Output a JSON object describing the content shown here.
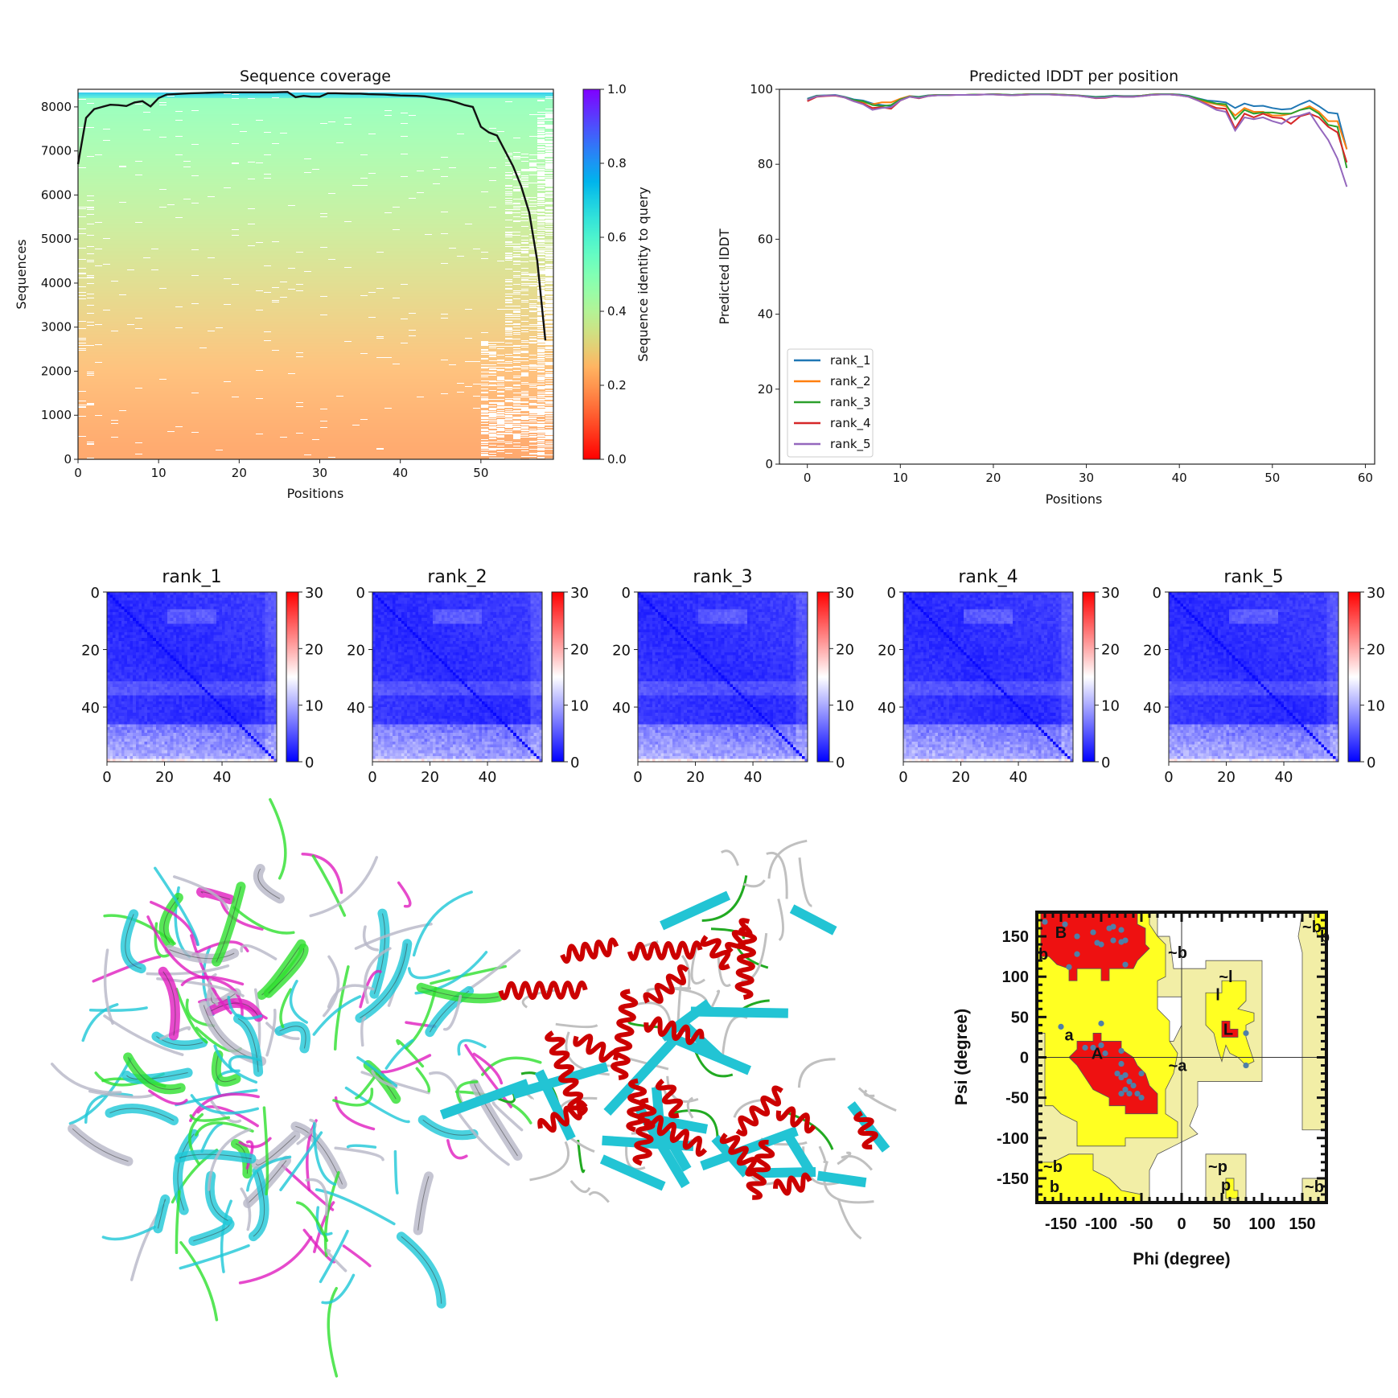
{
  "chart_data": [
    {
      "type": "heatmap",
      "id": "coverage",
      "title": "Sequence coverage",
      "xlabel": "Positions",
      "ylabel": "Sequences",
      "xlim": [
        0,
        59
      ],
      "ylim": [
        0,
        8400
      ],
      "xticks": [
        0,
        10,
        20,
        30,
        40,
        50
      ],
      "yticks": [
        0,
        1000,
        2000,
        3000,
        4000,
        5000,
        6000,
        7000,
        8000
      ],
      "colorbar": {
        "label": "Sequence identity to query",
        "range": [
          0,
          1
        ],
        "ticks": [
          "0.0",
          "0.2",
          "0.4",
          "0.6",
          "0.8",
          "1.0"
        ],
        "colormap": "rainbow_r"
      },
      "coverage_line": [
        6700,
        7750,
        7950,
        8000,
        8050,
        8040,
        8020,
        8100,
        8130,
        8010,
        8200,
        8280,
        8290,
        8300,
        8310,
        8315,
        8320,
        8325,
        8330,
        8330,
        8330,
        8330,
        8330,
        8330,
        8330,
        8335,
        8340,
        8220,
        8250,
        8230,
        8230,
        8310,
        8310,
        8305,
        8300,
        8300,
        8290,
        8285,
        8280,
        8270,
        8260,
        8255,
        8250,
        8240,
        8210,
        8180,
        8150,
        8100,
        8040,
        8000,
        7550,
        7420,
        7350,
        7000,
        6650,
        6200,
        5600,
        4500,
        2700
      ],
      "line_color": "#111111"
    },
    {
      "type": "line",
      "id": "plddt",
      "title": "Predicted lDDT per position",
      "xlabel": "Positions",
      "ylabel": "Predicted lDDT",
      "xlim": [
        -3,
        61
      ],
      "ylim": [
        0,
        100
      ],
      "xticks": [
        0,
        10,
        20,
        30,
        40,
        50,
        60
      ],
      "yticks": [
        0,
        20,
        40,
        60,
        80,
        100
      ],
      "legend_position": "lower-left",
      "series": [
        {
          "name": "rank_1",
          "color": "#1f77b4",
          "values": [
            97.5,
            98.3,
            98.4,
            98.5,
            98.0,
            97.3,
            97.0,
            96.2,
            95.8,
            95.5,
            97.2,
            98.2,
            98.0,
            98.4,
            98.5,
            98.5,
            98.5,
            98.5,
            98.6,
            98.6,
            98.7,
            98.6,
            98.5,
            98.6,
            98.7,
            98.7,
            98.7,
            98.6,
            98.5,
            98.4,
            98.2,
            98.0,
            98.1,
            98.3,
            98.2,
            98.2,
            98.3,
            98.6,
            98.7,
            98.7,
            98.6,
            98.3,
            97.6,
            97.0,
            96.8,
            96.5,
            95.0,
            96.2,
            95.5,
            95.6,
            95.0,
            94.6,
            94.8,
            96.0,
            97.0,
            95.5,
            93.8,
            93.5,
            84.0
          ]
        },
        {
          "name": "rank_2",
          "color": "#ff7f0e",
          "values": [
            97.0,
            98.2,
            98.3,
            98.4,
            97.9,
            97.0,
            96.5,
            96.0,
            96.5,
            96.5,
            97.5,
            98.2,
            97.8,
            98.3,
            98.5,
            98.5,
            98.5,
            98.5,
            98.6,
            98.6,
            98.7,
            98.6,
            98.4,
            98.6,
            98.7,
            98.7,
            98.7,
            98.6,
            98.5,
            98.4,
            98.1,
            97.8,
            97.9,
            98.2,
            98.1,
            98.1,
            98.3,
            98.6,
            98.7,
            98.7,
            98.5,
            98.1,
            97.3,
            96.5,
            96.0,
            95.5,
            93.0,
            95.0,
            94.0,
            94.0,
            93.0,
            93.0,
            93.5,
            94.5,
            95.5,
            94.0,
            91.5,
            91.5,
            84.0
          ]
        },
        {
          "name": "rank_3",
          "color": "#2ca02c",
          "values": [
            97.3,
            98.2,
            98.3,
            98.4,
            97.9,
            97.1,
            96.8,
            95.8,
            95.5,
            95.8,
            97.3,
            98.1,
            97.9,
            98.3,
            98.5,
            98.5,
            98.5,
            98.5,
            98.6,
            98.6,
            98.7,
            98.6,
            98.5,
            98.6,
            98.7,
            98.7,
            98.7,
            98.6,
            98.5,
            98.4,
            98.1,
            97.9,
            98.0,
            98.2,
            98.1,
            98.1,
            98.3,
            98.6,
            98.7,
            98.7,
            98.5,
            98.2,
            97.5,
            96.8,
            96.2,
            96.0,
            92.0,
            94.5,
            93.5,
            93.8,
            93.8,
            93.5,
            93.5,
            94.5,
            95.0,
            93.5,
            90.5,
            90.0,
            79.0
          ]
        },
        {
          "name": "rank_4",
          "color": "#d62728",
          "values": [
            96.8,
            98.0,
            98.2,
            98.3,
            97.8,
            96.8,
            96.2,
            95.0,
            95.2,
            94.8,
            97.0,
            98.0,
            97.6,
            98.2,
            98.4,
            98.4,
            98.5,
            98.5,
            98.5,
            98.6,
            98.6,
            98.5,
            98.4,
            98.5,
            98.6,
            98.6,
            98.6,
            98.5,
            98.4,
            98.3,
            98.0,
            97.6,
            97.7,
            98.1,
            98.0,
            98.0,
            98.2,
            98.5,
            98.6,
            98.6,
            98.4,
            98.0,
            97.0,
            96.0,
            95.0,
            94.8,
            89.5,
            93.5,
            92.5,
            93.5,
            92.5,
            92.3,
            90.8,
            92.8,
            93.5,
            92.5,
            90.0,
            88.5,
            80.5
          ]
        },
        {
          "name": "rank_5",
          "color": "#9467bd",
          "values": [
            97.2,
            98.1,
            98.3,
            98.4,
            97.8,
            96.8,
            96.0,
            94.5,
            95.0,
            95.2,
            97.0,
            98.0,
            97.7,
            98.2,
            98.4,
            98.4,
            98.5,
            98.5,
            98.5,
            98.6,
            98.6,
            98.5,
            98.4,
            98.5,
            98.6,
            98.6,
            98.6,
            98.5,
            98.4,
            98.3,
            98.0,
            97.7,
            97.8,
            98.1,
            98.0,
            98.0,
            98.2,
            98.5,
            98.6,
            98.6,
            98.4,
            98.0,
            97.0,
            95.8,
            94.5,
            94.0,
            89.0,
            92.5,
            92.0,
            92.5,
            91.5,
            90.8,
            92.5,
            93.0,
            93.8,
            90.0,
            86.5,
            81.5,
            74.0
          ]
        }
      ]
    },
    {
      "type": "heatmap",
      "id": "pae",
      "panels": [
        "rank_1",
        "rank_2",
        "rank_3",
        "rank_4",
        "rank_5"
      ],
      "xticks": [
        0,
        20,
        40
      ],
      "yticks": [
        0,
        20,
        40
      ],
      "size": 59,
      "colorbar": {
        "range": [
          0,
          30
        ],
        "ticks": [
          0,
          10,
          20,
          30
        ],
        "colormap": "bwr"
      },
      "description_values": {
        "typical": 3,
        "diagonal": 0.5,
        "max_offdiagonal": 11
      }
    },
    {
      "type": "scatter",
      "id": "ramachandran",
      "xlabel": "Phi (degree)",
      "ylabel": "Psi (degree)",
      "xlim": [
        -180,
        180
      ],
      "ylim": [
        -180,
        180
      ],
      "xticks": [
        -150,
        -100,
        -50,
        0,
        50,
        100,
        150
      ],
      "yticks": [
        -150,
        -100,
        -50,
        0,
        50,
        100,
        150
      ],
      "region_colors": {
        "core": "#ee1111",
        "allowed": "#ffff22",
        "generous": "#f2eea6",
        "disallowed": "#ffffff"
      },
      "point_color": "#4f7fa8",
      "region_labels": [
        {
          "text": "B",
          "phi": -150,
          "psi": 155
        },
        {
          "text": "b",
          "phi": -172,
          "psi": 128
        },
        {
          "text": "~b",
          "phi": -5,
          "psi": 130
        },
        {
          "text": "a",
          "phi": -140,
          "psi": 28
        },
        {
          "text": "A",
          "phi": -105,
          "psi": 5
        },
        {
          "text": "~a",
          "phi": -5,
          "psi": -10
        },
        {
          "text": "~l",
          "phi": 55,
          "psi": 100
        },
        {
          "text": "l",
          "phi": 45,
          "psi": 78
        },
        {
          "text": "L",
          "phi": 58,
          "psi": 35
        },
        {
          "text": "~p",
          "phi": 45,
          "psi": -135
        },
        {
          "text": "p",
          "phi": 55,
          "psi": -158
        },
        {
          "text": "~b",
          "phi": -160,
          "psi": -135
        },
        {
          "text": "b",
          "phi": -158,
          "psi": -160
        },
        {
          "text": "~b",
          "phi": 162,
          "psi": 162
        },
        {
          "text": "b",
          "phi": 178,
          "psi": 150
        },
        {
          "text": "~b",
          "phi": 165,
          "psi": -160
        }
      ],
      "points": [
        [
          -170,
          168
        ],
        [
          -145,
          165
        ],
        [
          -130,
          150
        ],
        [
          -110,
          155
        ],
        [
          -90,
          160
        ],
        [
          -85,
          162
        ],
        [
          -75,
          158
        ],
        [
          -100,
          140
        ],
        [
          -105,
          142
        ],
        [
          -85,
          145
        ],
        [
          -70,
          145
        ],
        [
          -75,
          143
        ],
        [
          -130,
          128
        ],
        [
          -140,
          112
        ],
        [
          -70,
          115
        ],
        [
          -150,
          38
        ],
        [
          -100,
          42
        ],
        [
          -120,
          12
        ],
        [
          -110,
          12
        ],
        [
          -100,
          15
        ],
        [
          -95,
          5
        ],
        [
          -75,
          8
        ],
        [
          -75,
          -8
        ],
        [
          -80,
          -20
        ],
        [
          -75,
          -25
        ],
        [
          -70,
          -22
        ],
        [
          -65,
          -30
        ],
        [
          -60,
          -35
        ],
        [
          -70,
          -40
        ],
        [
          -75,
          -45
        ],
        [
          -65,
          -45
        ],
        [
          -55,
          -45
        ],
        [
          -50,
          -50
        ],
        [
          -50,
          -20
        ],
        [
          80,
          30
        ],
        [
          80,
          -10
        ]
      ]
    }
  ],
  "structures": {
    "overlay_colors": [
      "#e020c0",
      "#30e030",
      "#20c8d8",
      "#b8b8c8"
    ],
    "model_colors": {
      "helix": "#cc0000",
      "sheet": "#22c4d4",
      "loop": "#c0c0c0",
      "turn": "#22aa22"
    }
  }
}
